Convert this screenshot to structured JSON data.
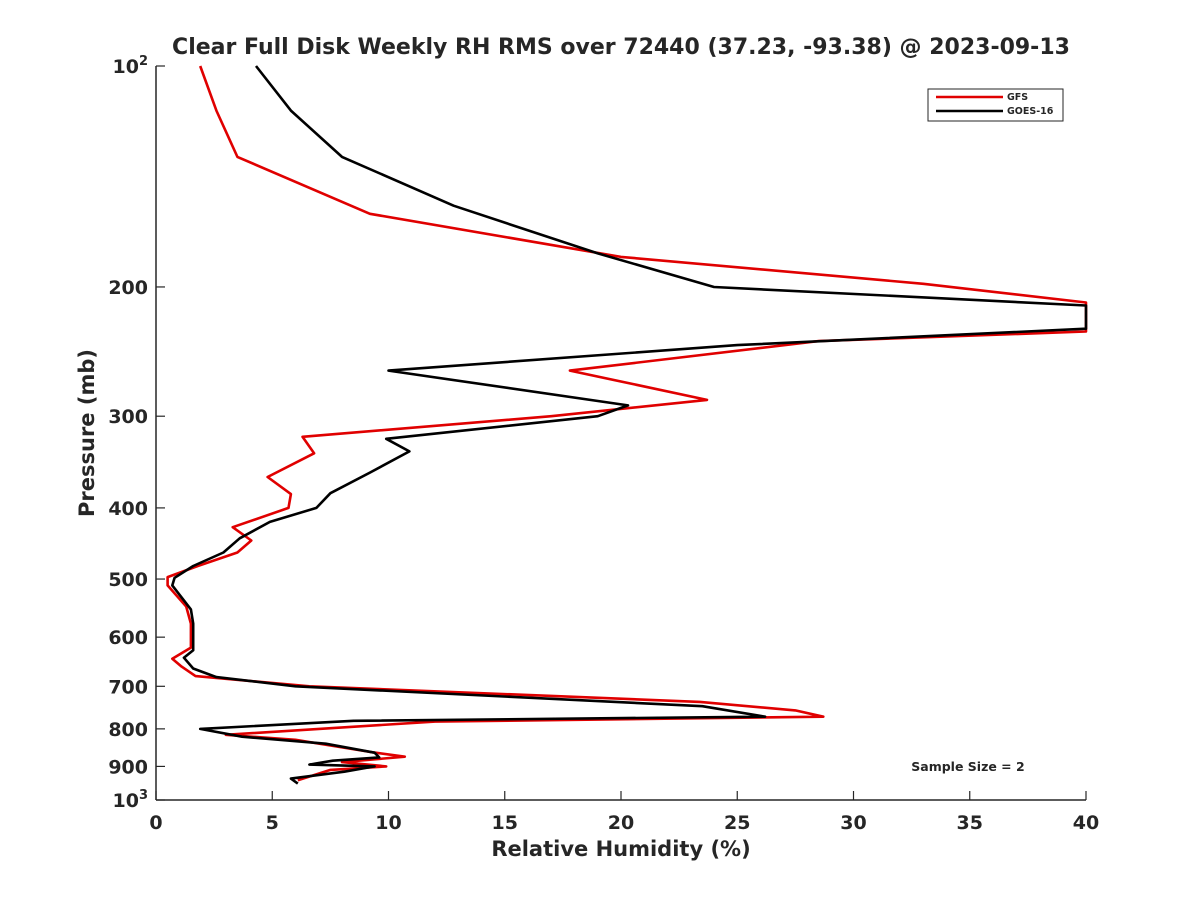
{
  "chart_data": {
    "type": "line",
    "title": "Clear Full Disk Weekly RH RMS over 72440 (37.23, -93.38) @ 2023-09-13",
    "xlabel": "Relative Humidity (%)",
    "ylabel": "Pressure (mb)",
    "xlim": [
      0,
      40
    ],
    "ylim": [
      100,
      1000
    ],
    "y_scale": "log",
    "y_reversed": true,
    "grid": false,
    "legend_position": "top-right",
    "annotation": "Sample Size = 2",
    "x_ticks": [
      "0",
      "5",
      "10",
      "15",
      "20",
      "25",
      "30",
      "35",
      "40"
    ],
    "x_tick_values": [
      0,
      5,
      10,
      15,
      20,
      25,
      30,
      35,
      40
    ],
    "y_ticks": [
      {
        "value": 100,
        "base": "10",
        "exp": "2"
      },
      {
        "value": 200,
        "base": "200",
        "exp": ""
      },
      {
        "value": 300,
        "base": "300",
        "exp": ""
      },
      {
        "value": 400,
        "base": "400",
        "exp": ""
      },
      {
        "value": 500,
        "base": "500",
        "exp": ""
      },
      {
        "value": 600,
        "base": "600",
        "exp": ""
      },
      {
        "value": 700,
        "base": "700",
        "exp": ""
      },
      {
        "value": 800,
        "base": "800",
        "exp": ""
      },
      {
        "value": 900,
        "base": "900",
        "exp": ""
      },
      {
        "value": 1000,
        "base": "10",
        "exp": "3"
      }
    ],
    "series": [
      {
        "name": "GFS",
        "color": "#e00000",
        "points": [
          [
            1.9,
            100
          ],
          [
            2.6,
            115
          ],
          [
            3.5,
            133
          ],
          [
            9.2,
            159
          ],
          [
            20,
            182
          ],
          [
            33,
            198
          ],
          [
            40,
            210
          ],
          [
            40,
            230
          ],
          [
            28.5,
            237
          ],
          [
            17.8,
            260
          ],
          [
            23.7,
            285
          ],
          [
            17,
            300
          ],
          [
            6.3,
            320
          ],
          [
            6.8,
            337
          ],
          [
            4.8,
            363
          ],
          [
            5.8,
            383
          ],
          [
            5.7,
            400
          ],
          [
            3.3,
            425
          ],
          [
            4.1,
            443
          ],
          [
            3.5,
            460
          ],
          [
            1.8,
            480
          ],
          [
            0.5,
            497
          ],
          [
            0.5,
            510
          ],
          [
            1.3,
            545
          ],
          [
            1.5,
            575
          ],
          [
            1.5,
            620
          ],
          [
            0.7,
            642
          ],
          [
            1.1,
            658
          ],
          [
            1.7,
            678
          ],
          [
            6.6,
            700
          ],
          [
            23.4,
            735
          ],
          [
            27.5,
            755
          ],
          [
            28.7,
            770
          ],
          [
            12,
            782
          ],
          [
            3,
            815
          ],
          [
            6,
            828
          ],
          [
            9.2,
            860
          ],
          [
            10.7,
            873
          ],
          [
            8,
            888
          ],
          [
            9.9,
            900
          ],
          [
            7.5,
            910
          ],
          [
            6.1,
            940
          ]
        ]
      },
      {
        "name": "GOES-16",
        "color": "#000000",
        "points": [
          [
            4.3,
            100
          ],
          [
            5.8,
            115
          ],
          [
            8,
            133
          ],
          [
            12.8,
            155
          ],
          [
            19,
            180
          ],
          [
            24,
            200
          ],
          [
            40,
            212
          ],
          [
            40,
            228
          ],
          [
            25,
            240
          ],
          [
            10,
            260
          ],
          [
            20.3,
            290
          ],
          [
            19,
            300
          ],
          [
            9.9,
            322
          ],
          [
            10.9,
            335
          ],
          [
            9.2,
            358
          ],
          [
            7.5,
            382
          ],
          [
            6.9,
            400
          ],
          [
            4.9,
            418
          ],
          [
            3.6,
            440
          ],
          [
            2.9,
            460
          ],
          [
            1.6,
            480
          ],
          [
            0.8,
            498
          ],
          [
            0.7,
            510
          ],
          [
            1.5,
            550
          ],
          [
            1.6,
            575
          ],
          [
            1.6,
            625
          ],
          [
            1.2,
            640
          ],
          [
            1.6,
            662
          ],
          [
            2.6,
            680
          ],
          [
            6,
            700
          ],
          [
            23.5,
            745
          ],
          [
            26.2,
            770
          ],
          [
            8.5,
            780
          ],
          [
            1.9,
            800
          ],
          [
            3.7,
            820
          ],
          [
            7.3,
            838
          ],
          [
            9.4,
            862
          ],
          [
            9.6,
            875
          ],
          [
            7.6,
            884
          ],
          [
            6.6,
            895
          ],
          [
            9.4,
            900
          ],
          [
            8.1,
            915
          ],
          [
            5.8,
            935
          ],
          [
            6.1,
            950
          ]
        ]
      }
    ]
  }
}
